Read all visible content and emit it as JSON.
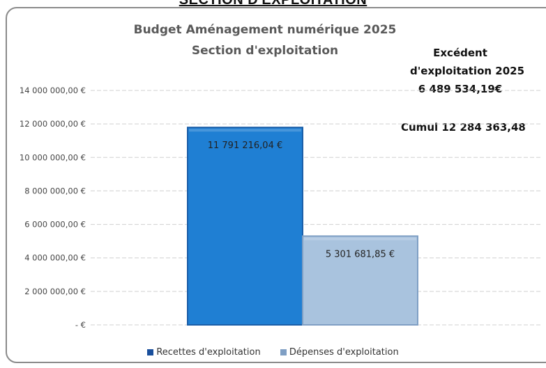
{
  "page": {
    "section_heading": "SECTION D'EXPLOITATION"
  },
  "annotations": {
    "excedent_line1": "Excédent",
    "excedent_line2": "d'exploitation 2025",
    "excedent_value": "6 489 534,19€",
    "cumul": "Cumul 12 284 363,48"
  },
  "chart_data": {
    "type": "bar",
    "title": "Budget Aménagement numérique 2025",
    "subtitle": "Section d'exploitation",
    "categories": [
      ""
    ],
    "series": [
      {
        "name": "Recettes d'exploitation",
        "values": [
          11791216.04
        ],
        "data_label": "11 791 216,04 €",
        "color": "#1f7fd3"
      },
      {
        "name": "Dépenses d'exploitation",
        "values": [
          5301681.85
        ],
        "data_label": "5 301 681,85 €",
        "color": "#a9c3de"
      }
    ],
    "ylim": [
      0,
      14000000
    ],
    "yticks": [
      {
        "value": 0,
        "label": "- €"
      },
      {
        "value": 2000000,
        "label": "2 000 000,00 €"
      },
      {
        "value": 4000000,
        "label": "4 000 000,00 €"
      },
      {
        "value": 6000000,
        "label": "6 000 000,00 €"
      },
      {
        "value": 8000000,
        "label": "8 000 000,00 €"
      },
      {
        "value": 10000000,
        "label": "10 000 000,00 €"
      },
      {
        "value": 12000000,
        "label": "12 000 000,00 €"
      },
      {
        "value": 14000000,
        "label": "14 000 000,00 €"
      }
    ],
    "grid": true,
    "legend": "bottom"
  }
}
